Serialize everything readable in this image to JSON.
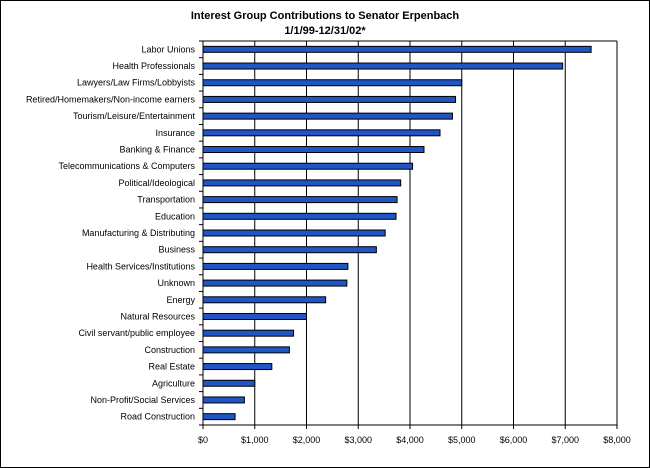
{
  "chart_data": {
    "type": "bar",
    "orientation": "horizontal",
    "title": "Interest Group Contributions to Senator Erpenbach",
    "subtitle": "1/1/99-12/31/02*",
    "xlabel": "",
    "ylabel": "",
    "xlim": [
      0,
      8000
    ],
    "x_ticks": [
      "$0",
      "$1,000",
      "$2,000",
      "$3,000",
      "$4,000",
      "$5,000",
      "$6,000",
      "$7,000",
      "$8,000"
    ],
    "grid": "vertical major gridlines",
    "legend": "none",
    "bar_color": "#1f55c4",
    "categories": [
      "Labor Unions",
      "Health Professionals",
      "Lawyers/Law Firms/Lobbyists",
      "Retired/Homemakers/Non-income earners",
      "Tourism/Leisure/Entertainment",
      "Insurance",
      "Banking & Finance",
      "Telecommunications & Computers",
      "Political/Ideological",
      "Transportation",
      "Education",
      "Manufacturing & Distributing",
      "Business",
      "Health Services/Institutions",
      "Unknown",
      "Energy",
      "Natural Resources",
      "Civil servant/public employee",
      "Construction",
      "Real Estate",
      "Agriculture",
      "Non-Profit/Social Services",
      "Road Construction"
    ],
    "values": [
      7500,
      6950,
      5000,
      4880,
      4820,
      4580,
      4270,
      4050,
      3820,
      3750,
      3730,
      3520,
      3350,
      2800,
      2780,
      2370,
      2000,
      1750,
      1670,
      1330,
      1000,
      800,
      620
    ]
  }
}
